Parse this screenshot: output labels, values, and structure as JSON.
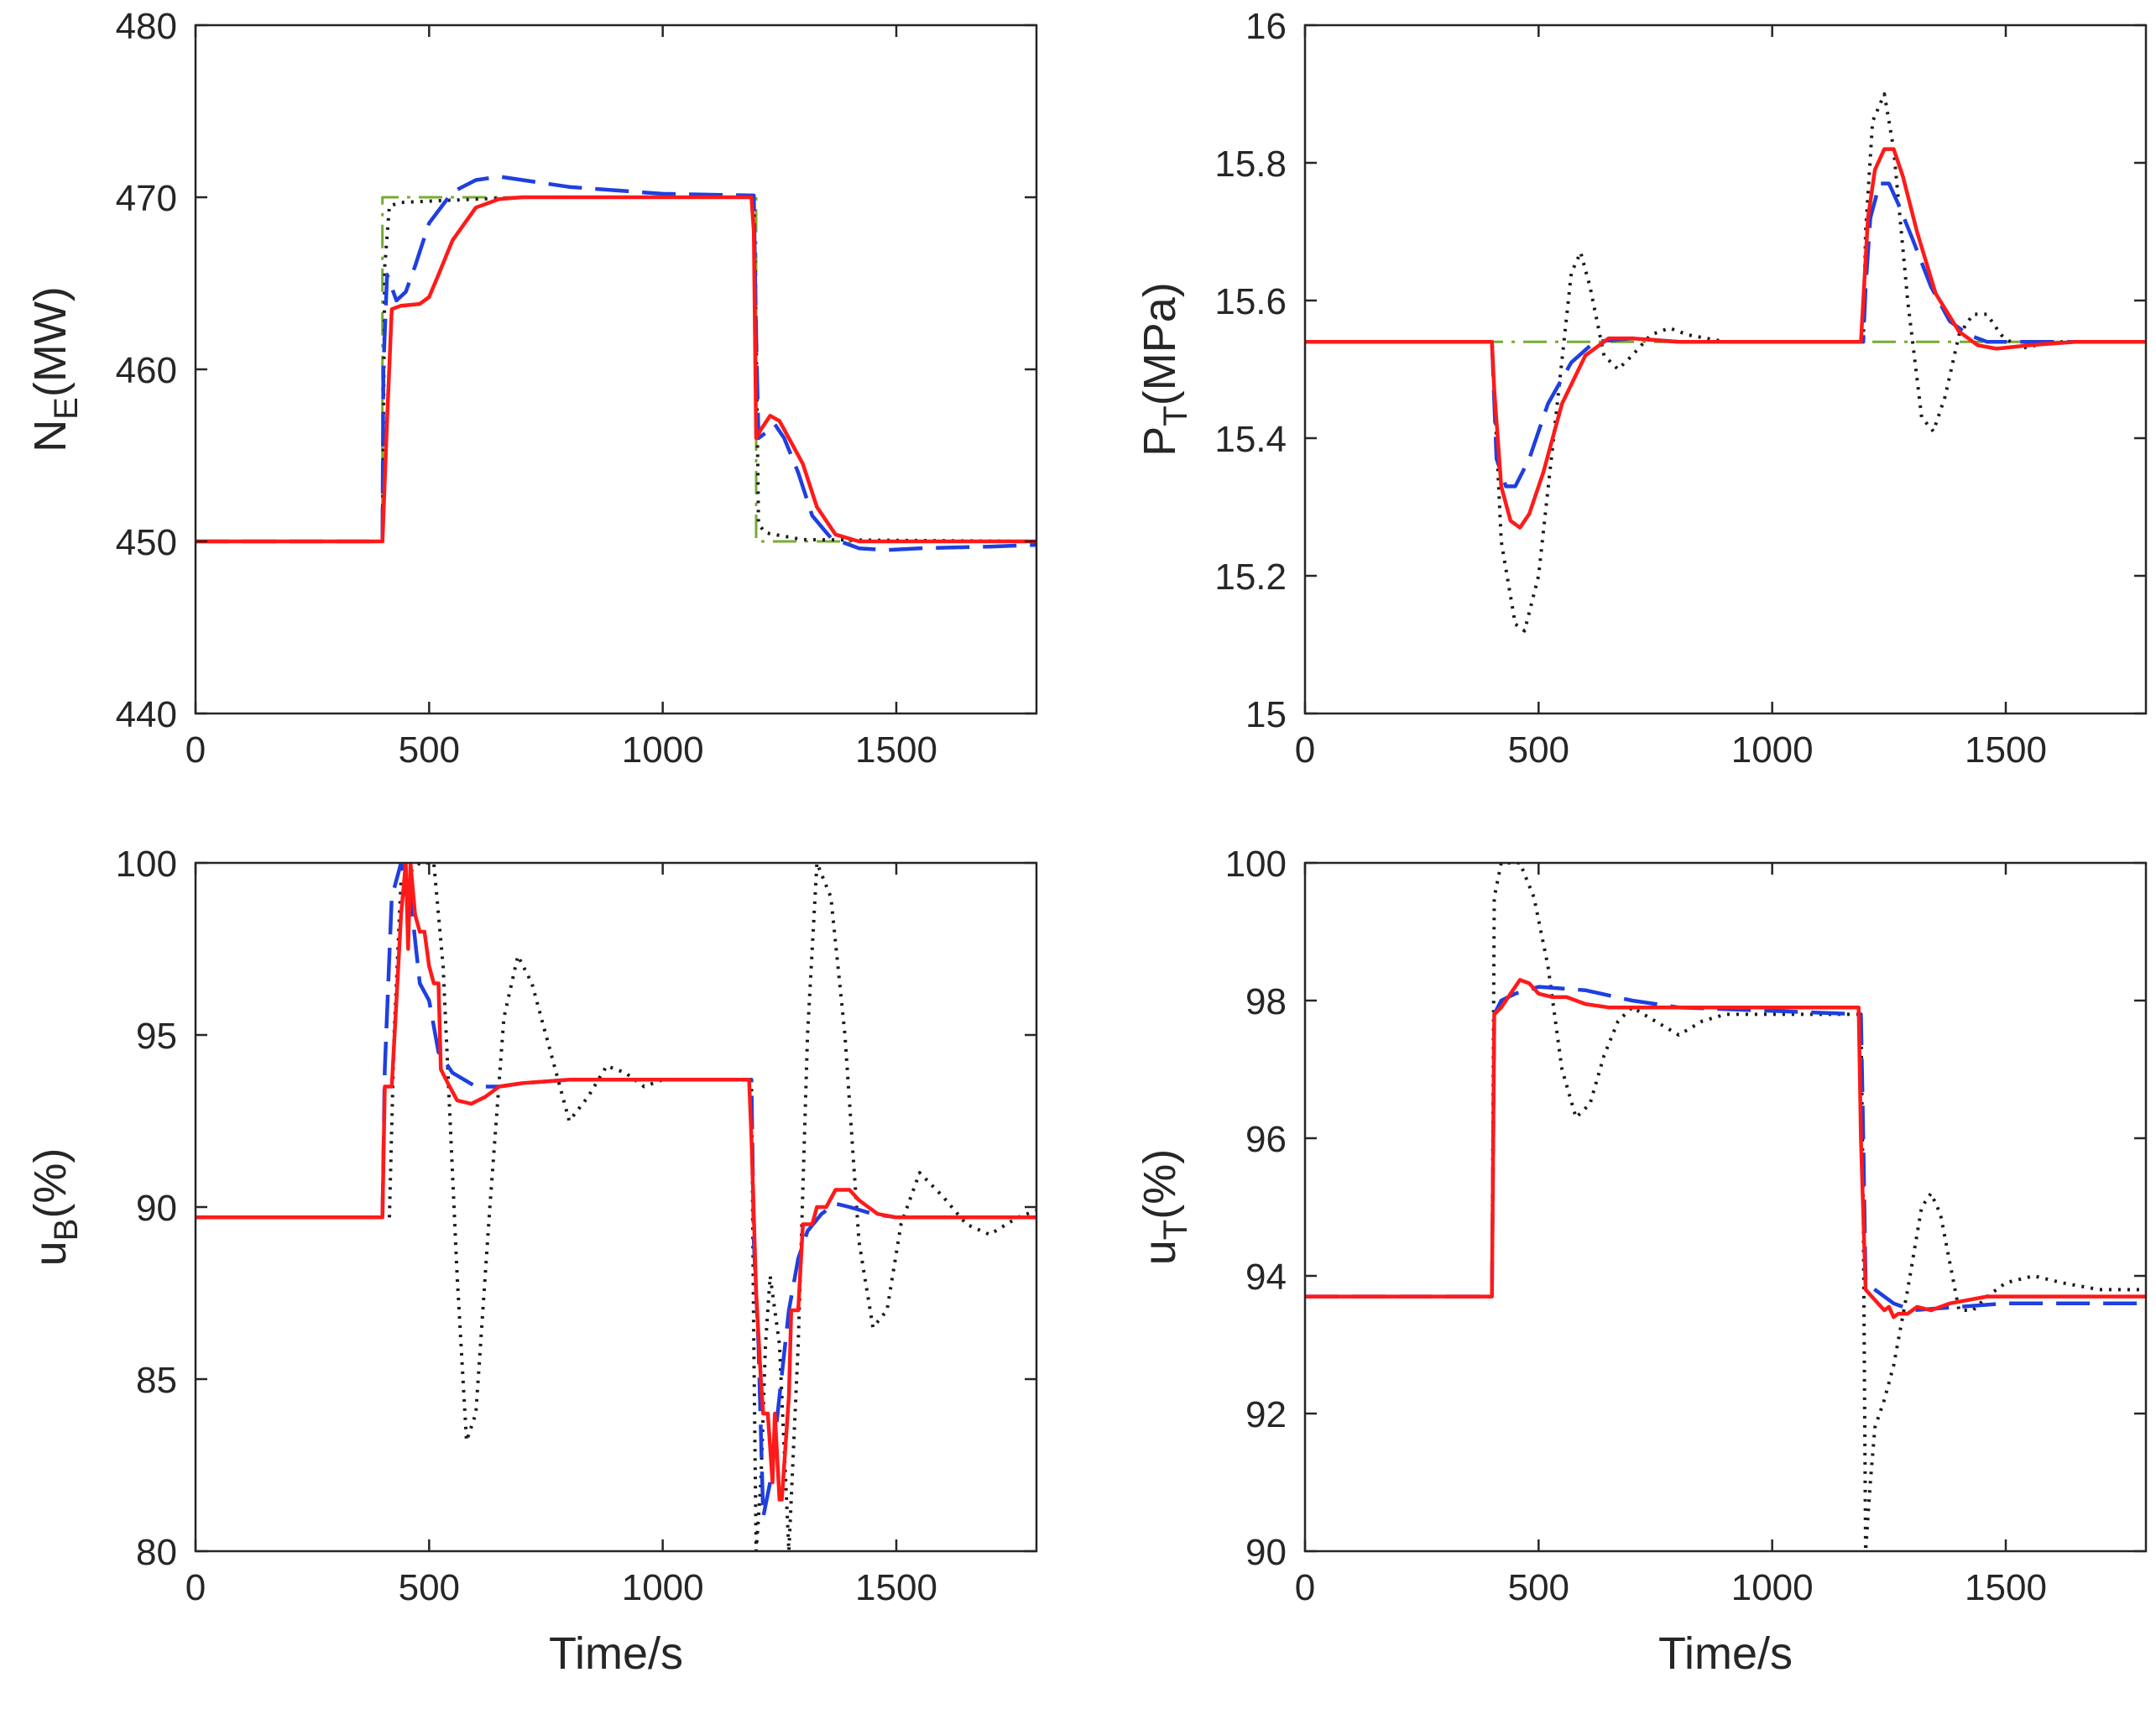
{
  "series_styles": [
    {
      "name": "reference",
      "color": "#77ac30",
      "dash": "28,10,4,10",
      "width": 3
    },
    {
      "name": "controller-dotted",
      "color": "#1a1a1a",
      "dash": "3,8",
      "width": 4
    },
    {
      "name": "controller-dashed",
      "color": "#1f3fe0",
      "dash": "40,16",
      "width": 4.5
    },
    {
      "name": "controller-solid",
      "color": "#ff1a1a",
      "dash": "",
      "width": 4.5
    }
  ],
  "chart_data": [
    {
      "id": "NE",
      "type": "line",
      "ylabel_main": "N",
      "ylabel_sub": "E",
      "ylabel_rest": "(MW)",
      "xlabel": "",
      "xlim": [
        0,
        1800
      ],
      "ylim": [
        440,
        480
      ],
      "xticks": [
        0,
        500,
        1000,
        1500
      ],
      "xtick_labels": [
        "0",
        "500",
        "1000",
        "1500"
      ],
      "yticks": [
        440,
        450,
        460,
        470,
        480
      ],
      "ytick_labels": [
        "440",
        "450",
        "460",
        "470",
        "480"
      ],
      "series": [
        {
          "name": "reference",
          "x": [
            0,
            400,
            400,
            1200,
            1200,
            1800
          ],
          "y": [
            450,
            450,
            470,
            470,
            450,
            450
          ]
        },
        {
          "name": "controller-dotted",
          "x": [
            0,
            400,
            405,
            415,
            440,
            520,
            700,
            1000,
            1195,
            1200,
            1205,
            1220,
            1300,
            1800
          ],
          "y": [
            450,
            450,
            466,
            469.5,
            469.7,
            469.8,
            470,
            470,
            470,
            462,
            451,
            450.5,
            450.1,
            450
          ]
        },
        {
          "name": "controller-dashed",
          "x": [
            0,
            400,
            402,
            410,
            430,
            450,
            470,
            500,
            550,
            600,
            650,
            700,
            800,
            1000,
            1195,
            1200,
            1205,
            1220,
            1240,
            1260,
            1290,
            1320,
            1360,
            1420,
            1480,
            1550,
            1700,
            1800
          ],
          "y": [
            450,
            450,
            460,
            465.5,
            464,
            464.5,
            466,
            468.5,
            470.3,
            471,
            471.2,
            471,
            470.6,
            470.2,
            470.1,
            462,
            456,
            456.3,
            456.8,
            456,
            454,
            451.5,
            450.2,
            449.6,
            449.5,
            449.6,
            449.7,
            449.8
          ]
        },
        {
          "name": "controller-solid",
          "x": [
            0,
            400,
            410,
            420,
            440,
            480,
            500,
            520,
            550,
            600,
            650,
            700,
            800,
            1000,
            1190,
            1195,
            1200,
            1210,
            1230,
            1250,
            1270,
            1300,
            1330,
            1370,
            1420,
            1500,
            1600,
            1800
          ],
          "y": [
            450,
            450,
            457,
            463.5,
            463.7,
            463.8,
            464.2,
            465.5,
            467.5,
            469.4,
            469.9,
            470,
            470,
            470,
            470,
            468,
            456,
            456.5,
            457.3,
            457,
            456,
            454.5,
            452,
            450.4,
            450,
            450,
            450,
            450
          ]
        }
      ]
    },
    {
      "id": "PT",
      "type": "line",
      "ylabel_main": "P",
      "ylabel_sub": "T",
      "ylabel_rest": "(MPa)",
      "xlabel": "",
      "xlim": [
        0,
        1800
      ],
      "ylim": [
        15,
        16
      ],
      "xticks": [
        0,
        500,
        1000,
        1500
      ],
      "xtick_labels": [
        "0",
        "500",
        "1000",
        "1500"
      ],
      "yticks": [
        15,
        15.2,
        15.4,
        15.6,
        15.8,
        16
      ],
      "ytick_labels": [
        "15",
        "15.2",
        "15.4",
        "15.6",
        "15.8",
        "16"
      ],
      "series": [
        {
          "name": "reference",
          "x": [
            0,
            1800
          ],
          "y": [
            15.54,
            15.54
          ]
        },
        {
          "name": "controller-dotted",
          "x": [
            0,
            400,
            420,
            450,
            470,
            500,
            540,
            570,
            590,
            610,
            640,
            670,
            700,
            740,
            780,
            820,
            900,
            1000,
            1195,
            1200,
            1215,
            1240,
            1260,
            1290,
            1320,
            1345,
            1370,
            1400,
            1430,
            1460,
            1490,
            1530,
            1600,
            1800
          ],
          "y": [
            15.54,
            15.54,
            15.25,
            15.13,
            15.12,
            15.2,
            15.45,
            15.64,
            15.67,
            15.62,
            15.52,
            15.5,
            15.52,
            15.55,
            15.56,
            15.55,
            15.54,
            15.54,
            15.54,
            15.7,
            15.86,
            15.9,
            15.82,
            15.6,
            15.43,
            15.41,
            15.46,
            15.55,
            15.58,
            15.58,
            15.55,
            15.53,
            15.54,
            15.54
          ]
        },
        {
          "name": "controller-dashed",
          "x": [
            0,
            400,
            410,
            430,
            450,
            480,
            520,
            570,
            620,
            700,
            800,
            1000,
            1195,
            1200,
            1210,
            1230,
            1250,
            1270,
            1300,
            1340,
            1380,
            1420,
            1460,
            1500,
            1600,
            1800
          ],
          "y": [
            15.54,
            15.54,
            15.37,
            15.33,
            15.33,
            15.37,
            15.45,
            15.51,
            15.54,
            15.545,
            15.54,
            15.54,
            15.54,
            15.62,
            15.72,
            15.77,
            15.77,
            15.74,
            15.69,
            15.62,
            15.57,
            15.55,
            15.54,
            15.54,
            15.54,
            15.54
          ]
        },
        {
          "name": "controller-solid",
          "x": [
            0,
            400,
            405,
            420,
            440,
            460,
            480,
            510,
            550,
            600,
            650,
            700,
            800,
            1000,
            1190,
            1195,
            1205,
            1220,
            1240,
            1260,
            1280,
            1310,
            1350,
            1400,
            1440,
            1480,
            1550,
            1650,
            1800
          ],
          "y": [
            15.54,
            15.54,
            15.47,
            15.33,
            15.28,
            15.27,
            15.29,
            15.35,
            15.45,
            15.52,
            15.545,
            15.545,
            15.54,
            15.54,
            15.54,
            15.6,
            15.72,
            15.79,
            15.82,
            15.82,
            15.78,
            15.7,
            15.61,
            15.555,
            15.535,
            15.53,
            15.535,
            15.54,
            15.54
          ]
        }
      ]
    },
    {
      "id": "uB",
      "type": "line",
      "ylabel_main": "u",
      "ylabel_sub": "B",
      "ylabel_rest": "(%)",
      "xlabel": "Time/s",
      "xlim": [
        0,
        1800
      ],
      "ylim": [
        80,
        100
      ],
      "xticks": [
        0,
        500,
        1000,
        1500
      ],
      "xtick_labels": [
        "0",
        "500",
        "1000",
        "1500"
      ],
      "yticks": [
        80,
        85,
        90,
        95,
        100
      ],
      "ytick_labels": [
        "80",
        "85",
        "90",
        "95",
        "100"
      ],
      "series": [
        {
          "name": "controller-dotted",
          "x": [
            0,
            415,
            425,
            440,
            480,
            510,
            530,
            560,
            580,
            600,
            630,
            660,
            690,
            720,
            760,
            800,
            840,
            880,
            920,
            960,
            1000,
            1190,
            1195,
            1200,
            1210,
            1220,
            1230,
            1250,
            1270,
            1290,
            1310,
            1330,
            1360,
            1390,
            1420,
            1450,
            1480,
            1510,
            1550,
            1600,
            1650,
            1700,
            1760,
            1800
          ],
          "y": [
            89.7,
            89.7,
            95,
            99.5,
            100,
            100,
            97,
            88,
            83.2,
            84,
            90,
            95.5,
            97.3,
            96.5,
            94.5,
            92.5,
            93.2,
            94.1,
            93.9,
            93.5,
            93.7,
            93.7,
            86,
            80,
            82,
            86,
            88,
            86,
            80,
            86,
            95,
            100,
            99,
            95,
            89,
            86.5,
            87,
            89.5,
            91,
            90.3,
            89.5,
            89.2,
            89.7,
            89.9
          ]
        },
        {
          "name": "controller-dashed",
          "x": [
            0,
            400,
            405,
            420,
            440,
            460,
            480,
            500,
            520,
            550,
            600,
            650,
            700,
            800,
            1000,
            1190,
            1195,
            1205,
            1215,
            1230,
            1250,
            1270,
            1290,
            1310,
            1340,
            1370,
            1400,
            1450,
            1500,
            1600,
            1800
          ],
          "y": [
            89.7,
            89.7,
            94,
            99,
            100,
            99,
            96.5,
            96,
            94.5,
            93.9,
            93.5,
            93.5,
            93.6,
            93.7,
            93.7,
            93.7,
            89,
            86,
            81,
            82,
            84.5,
            87,
            88.5,
            89.3,
            89.8,
            90.1,
            90,
            89.8,
            89.7,
            89.7,
            89.7
          ]
        },
        {
          "name": "controller-solid",
          "x": [
            0,
            400,
            405,
            420,
            430,
            440,
            450,
            455,
            460,
            470,
            480,
            490,
            500,
            510,
            520,
            525,
            540,
            560,
            590,
            620,
            650,
            700,
            800,
            1000,
            1185,
            1190,
            1200,
            1210,
            1215,
            1225,
            1235,
            1240,
            1250,
            1255,
            1270,
            1275,
            1290,
            1300,
            1320,
            1330,
            1350,
            1370,
            1380,
            1400,
            1420,
            1440,
            1460,
            1500,
            1600,
            1800
          ],
          "y": [
            89.7,
            89.7,
            93.5,
            93.5,
            96,
            98.5,
            100,
            97.5,
            100,
            98.5,
            98,
            98,
            97,
            96.5,
            96.5,
            94,
            93.6,
            93.1,
            93,
            93.2,
            93.5,
            93.6,
            93.7,
            93.7,
            93.7,
            92,
            87.5,
            85,
            84,
            84,
            82,
            84,
            81.5,
            81.5,
            84.5,
            87,
            87,
            89.5,
            89.5,
            90,
            90,
            90.5,
            90.5,
            90.5,
            90.2,
            90,
            89.8,
            89.7,
            89.7,
            89.7
          ]
        }
      ]
    },
    {
      "id": "uT",
      "type": "line",
      "ylabel_main": "u",
      "ylabel_sub": "T",
      "ylabel_rest": "(%)",
      "xlabel": "Time/s",
      "xlim": [
        0,
        1800
      ],
      "ylim": [
        90,
        100
      ],
      "xticks": [
        0,
        500,
        1000,
        1500
      ],
      "xtick_labels": [
        "0",
        "500",
        "1000",
        "1500"
      ],
      "yticks": [
        90,
        92,
        94,
        96,
        98,
        100
      ],
      "ytick_labels": [
        "90",
        "92",
        "94",
        "96",
        "98",
        "100"
      ],
      "series": [
        {
          "name": "controller-dotted",
          "x": [
            0,
            400,
            405,
            420,
            460,
            490,
            520,
            550,
            580,
            610,
            640,
            670,
            700,
            750,
            800,
            850,
            900,
            1000,
            1190,
            1195,
            1200,
            1210,
            1220,
            1240,
            1260,
            1290,
            1320,
            1340,
            1360,
            1380,
            1400,
            1430,
            1460,
            1500,
            1560,
            1620,
            1700,
            1800
          ],
          "y": [
            93.7,
            93.7,
            99.5,
            100,
            100,
            99.5,
            98.5,
            97,
            96.3,
            96.5,
            97.2,
            97.7,
            97.9,
            97.7,
            97.5,
            97.7,
            97.8,
            97.8,
            97.8,
            95,
            90,
            91,
            91.8,
            92.2,
            92.7,
            93.8,
            95,
            95.2,
            94.9,
            94.2,
            93.5,
            93.5,
            93.7,
            93.9,
            94,
            93.9,
            93.8,
            93.8
          ]
        },
        {
          "name": "controller-dashed",
          "x": [
            0,
            400,
            405,
            420,
            450,
            500,
            600,
            700,
            800,
            1000,
            1190,
            1195,
            1200,
            1220,
            1260,
            1300,
            1400,
            1500,
            1650,
            1800
          ],
          "y": [
            93.7,
            93.7,
            97.8,
            98,
            98.1,
            98.2,
            98.15,
            98,
            97.9,
            97.85,
            97.8,
            96,
            93.9,
            93.8,
            93.6,
            93.5,
            93.55,
            93.6,
            93.6,
            93.6
          ]
        },
        {
          "name": "controller-solid",
          "x": [
            0,
            400,
            405,
            420,
            440,
            460,
            480,
            500,
            530,
            560,
            600,
            650,
            700,
            800,
            1000,
            1185,
            1190,
            1200,
            1220,
            1240,
            1250,
            1260,
            1270,
            1290,
            1310,
            1340,
            1380,
            1420,
            1460,
            1500,
            1600,
            1800
          ],
          "y": [
            93.7,
            93.7,
            97.8,
            97.9,
            98.1,
            98.3,
            98.25,
            98.1,
            98.05,
            98.05,
            97.95,
            97.9,
            97.9,
            97.9,
            97.9,
            97.9,
            96,
            93.8,
            93.65,
            93.5,
            93.55,
            93.4,
            93.45,
            93.45,
            93.55,
            93.5,
            93.6,
            93.65,
            93.7,
            93.7,
            93.7,
            93.7
          ]
        }
      ]
    }
  ]
}
